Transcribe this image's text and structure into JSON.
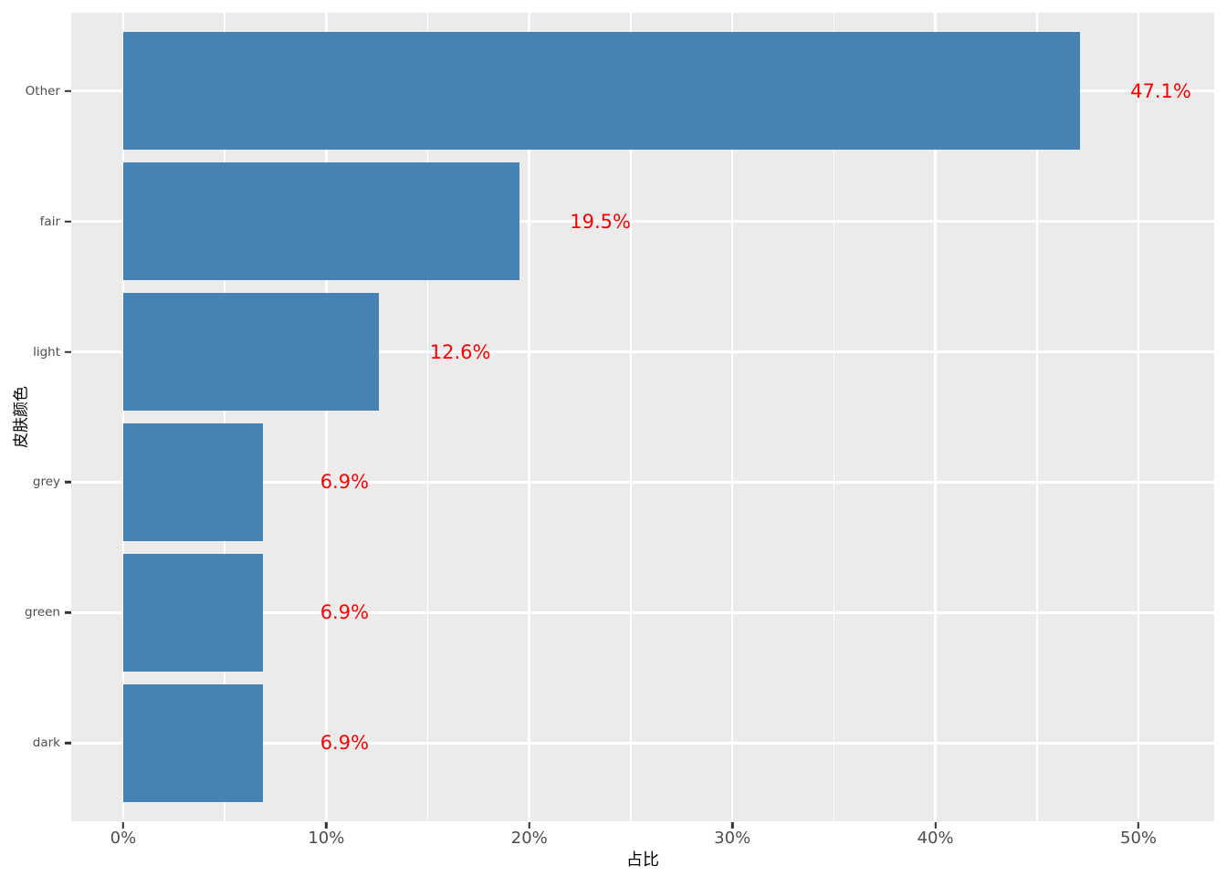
{
  "chart_data": {
    "type": "bar",
    "orientation": "horizontal",
    "title": "",
    "xlabel": "占比",
    "ylabel": "皮肤颜色",
    "categories": [
      "Other",
      "fair",
      "light",
      "grey",
      "green",
      "dark"
    ],
    "values": [
      47.1,
      19.5,
      12.6,
      6.9,
      6.9,
      6.9
    ],
    "value_labels": [
      "47.1%",
      "19.5%",
      "12.6%",
      "6.9%",
      "6.9%",
      "6.9%"
    ],
    "x_ticks": [
      {
        "value": 0,
        "label": "0%"
      },
      {
        "value": 10,
        "label": "10%"
      },
      {
        "value": 20,
        "label": "20%"
      },
      {
        "value": 30,
        "label": "30%"
      },
      {
        "value": 40,
        "label": "40%"
      },
      {
        "value": 50,
        "label": "50%"
      }
    ],
    "x_minor_ticks": [
      5,
      15,
      25,
      35,
      45
    ],
    "xlim": [
      -2.56,
      53.73
    ],
    "value_label_offset_pct": 4,
    "grid": "x-major-and-minor, y-major",
    "legend_position": "none",
    "colors": {
      "bar_fill": "#4682b4",
      "value_label": "#ff0000",
      "panel_background": "#ebebeb",
      "gridline": "#ffffff",
      "tick_text": "#4d4d4d",
      "axis_title_text": "#000000",
      "tick_mark": "#333333",
      "figure_background": "#ffffff"
    }
  }
}
